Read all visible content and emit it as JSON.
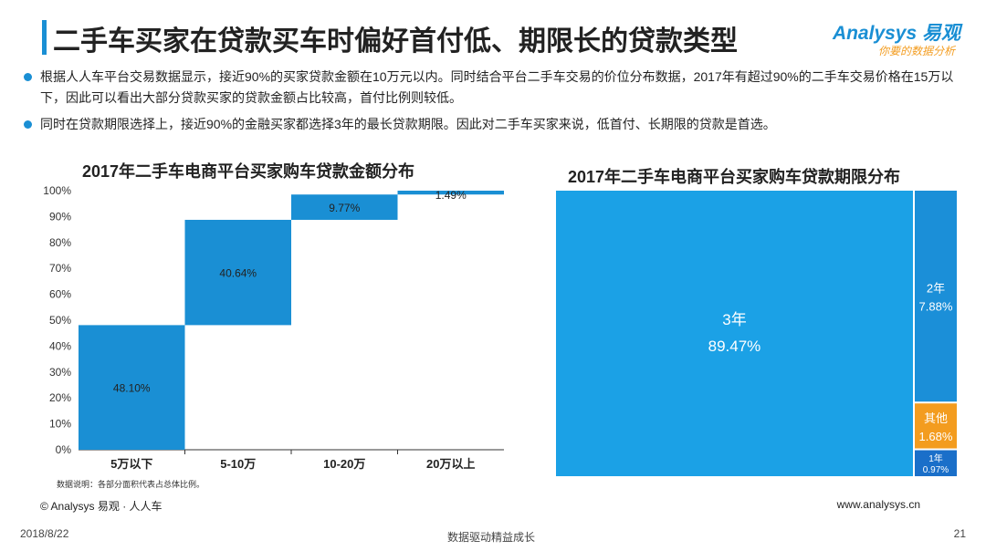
{
  "page": {
    "title": "二手车买家在贷款买车时偏好首付低、期限长的贷款类型",
    "bullets": [
      "根据人人车平台交易数据显示，接近90%的买家贷款金额在10万元以内。同时结合平台二手车交易的价位分布数据，2017年有超过90%的二手车交易价格在15万以下，因此可以看出大部分贷款买家的贷款金额占比较高，首付比例则较低。",
      "同时在贷款期限选择上，接近90%的金融买家都选择3年的最长贷款期限。因此对二手车买家来说，低首付、长期限的贷款是首选。"
    ],
    "note": "数据说明：各部分面积代表占总体比例。",
    "source": "© Analysys 易观 · 人人车",
    "url": "www.analysys.cn",
    "date": "2018/8/22",
    "slogan": "数据驱动精益成长",
    "page_number": "21"
  },
  "logo": {
    "name": "Analysys 易观",
    "tagline": "你要的数据分析"
  },
  "colors": {
    "accent": "#1a8fd4",
    "bar": "#1a8fd4",
    "other": "#f39c1f",
    "one_year": "#1a6fc9"
  },
  "chart_data": [
    {
      "type": "bar",
      "subtype": "waterfall",
      "title": "2017年二手车电商平台买家购车贷款金额分布",
      "categories": [
        "5万以下",
        "5-10万",
        "10-20万",
        "20万以上"
      ],
      "values": [
        48.1,
        40.64,
        9.77,
        1.49
      ],
      "value_labels": [
        "48.10%",
        "40.64%",
        "9.77%",
        "1.49%"
      ],
      "yticks": [
        "0%",
        "10%",
        "20%",
        "30%",
        "40%",
        "50%",
        "60%",
        "70%",
        "80%",
        "90%",
        "100%"
      ],
      "ylim": [
        0,
        100
      ]
    },
    {
      "type": "treemap",
      "title": "2017年二手车电商平台买家购车贷款期限分布",
      "items": [
        {
          "name": "3年",
          "value": 89.47,
          "label": "89.47%",
          "color": "#1ba1e6"
        },
        {
          "name": "2年",
          "value": 7.88,
          "label": "7.88%",
          "color": "#1b8fd8"
        },
        {
          "name": "其他",
          "value": 1.68,
          "label": "1.68%",
          "color": "#f39c1f"
        },
        {
          "name": "1年",
          "value": 0.97,
          "label": "0.97%",
          "color": "#1a6fc9"
        }
      ]
    }
  ]
}
